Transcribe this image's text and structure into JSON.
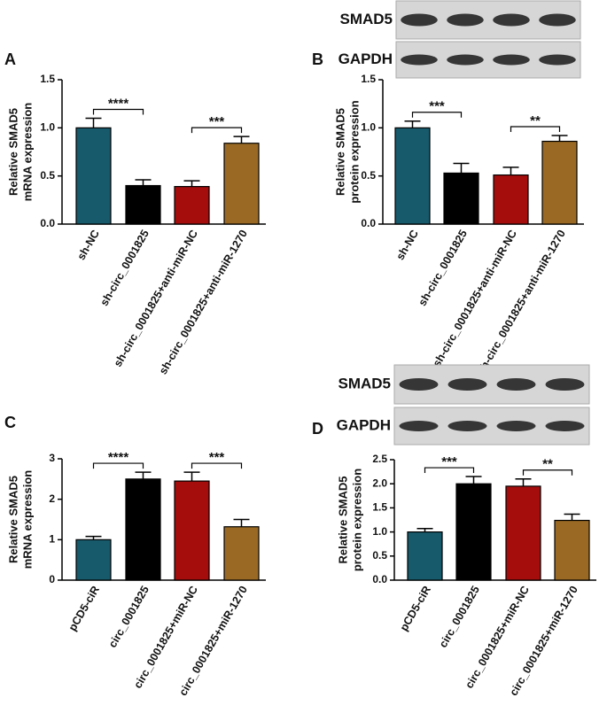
{
  "chart_data": [
    {
      "type": "bar",
      "panel": "A",
      "ylabel": [
        "Relative SMAD5",
        "mRNA expression"
      ],
      "categories": [
        "sh-NC",
        "sh-circ_0001825",
        "sh-circ_0001825+anti-miR-NC",
        "sh-circ_0001825+anti-miR-1270"
      ],
      "values": [
        1.0,
        0.4,
        0.39,
        0.84
      ],
      "errors": [
        0.1,
        0.06,
        0.06,
        0.07
      ],
      "colors": [
        "#175a6b",
        "#000000",
        "#a50d0d",
        "#9a6a24"
      ],
      "ylim": [
        0,
        1.5
      ],
      "yticks": [
        {
          "value": 0,
          "label": "0.0"
        },
        0.5,
        {
          "value": 1,
          "label": "1.0"
        },
        1.5
      ],
      "annotations": [
        "****",
        "***"
      ]
    },
    {
      "type": "bar",
      "panel": "B",
      "ylabel": [
        "Relative SMAD5",
        "protein expression"
      ],
      "categories": [
        "sh-NC",
        "sh-circ_0001825",
        "sh-circ_0001825+anti-miR-NC",
        "sh-circ_0001825+anti-miR-1270"
      ],
      "values": [
        1.0,
        0.53,
        0.51,
        0.86
      ],
      "errors": [
        0.07,
        0.1,
        0.08,
        0.06
      ],
      "colors": [
        "#175a6b",
        "#000000",
        "#a50d0d",
        "#9a6a24"
      ],
      "ylim": [
        0,
        1.5
      ],
      "yticks": [
        {
          "value": 0,
          "label": "0.0"
        },
        0.5,
        {
          "value": 1,
          "label": "1.0"
        },
        1.5
      ],
      "annotations": [
        "***",
        "**"
      ],
      "blot": [
        "SMAD5",
        "GAPDH"
      ]
    },
    {
      "type": "bar",
      "panel": "C",
      "ylabel": [
        "Relative SMAD5",
        "mRNA expression"
      ],
      "categories": [
        "pCD5-ciR",
        "circ_0001825",
        "circ_0001825+miR-NC",
        "circ_0001825+miR-1270"
      ],
      "values": [
        1.0,
        2.5,
        2.45,
        1.32
      ],
      "errors": [
        0.08,
        0.17,
        0.22,
        0.18
      ],
      "colors": [
        "#175a6b",
        "#000000",
        "#a50d0d",
        "#9a6a24"
      ],
      "ylim": [
        0,
        3
      ],
      "yticks": [
        0,
        1,
        2,
        3
      ],
      "annotations": [
        "****",
        "***"
      ]
    },
    {
      "type": "bar",
      "panel": "D",
      "ylabel": [
        "Relative SMAD5",
        "protein expression"
      ],
      "categories": [
        "pCD5-ciR",
        "circ_0001825",
        "circ_0001825+miR-NC",
        "circ_0001825+miR-1270"
      ],
      "values": [
        1.0,
        2.0,
        1.95,
        1.24
      ],
      "errors": [
        0.07,
        0.15,
        0.15,
        0.13
      ],
      "colors": [
        "#175a6b",
        "#000000",
        "#a50d0d",
        "#9a6a24"
      ],
      "ylim": [
        0,
        2.5
      ],
      "yticks": [
        {
          "value": 0,
          "label": "0.0"
        },
        0.5,
        {
          "value": 1,
          "label": "1.0"
        },
        1.5,
        {
          "value": 2,
          "label": "2.0"
        },
        2.5
      ],
      "annotations": [
        "***",
        "**"
      ],
      "blot": [
        "SMAD5",
        "GAPDH"
      ]
    }
  ]
}
